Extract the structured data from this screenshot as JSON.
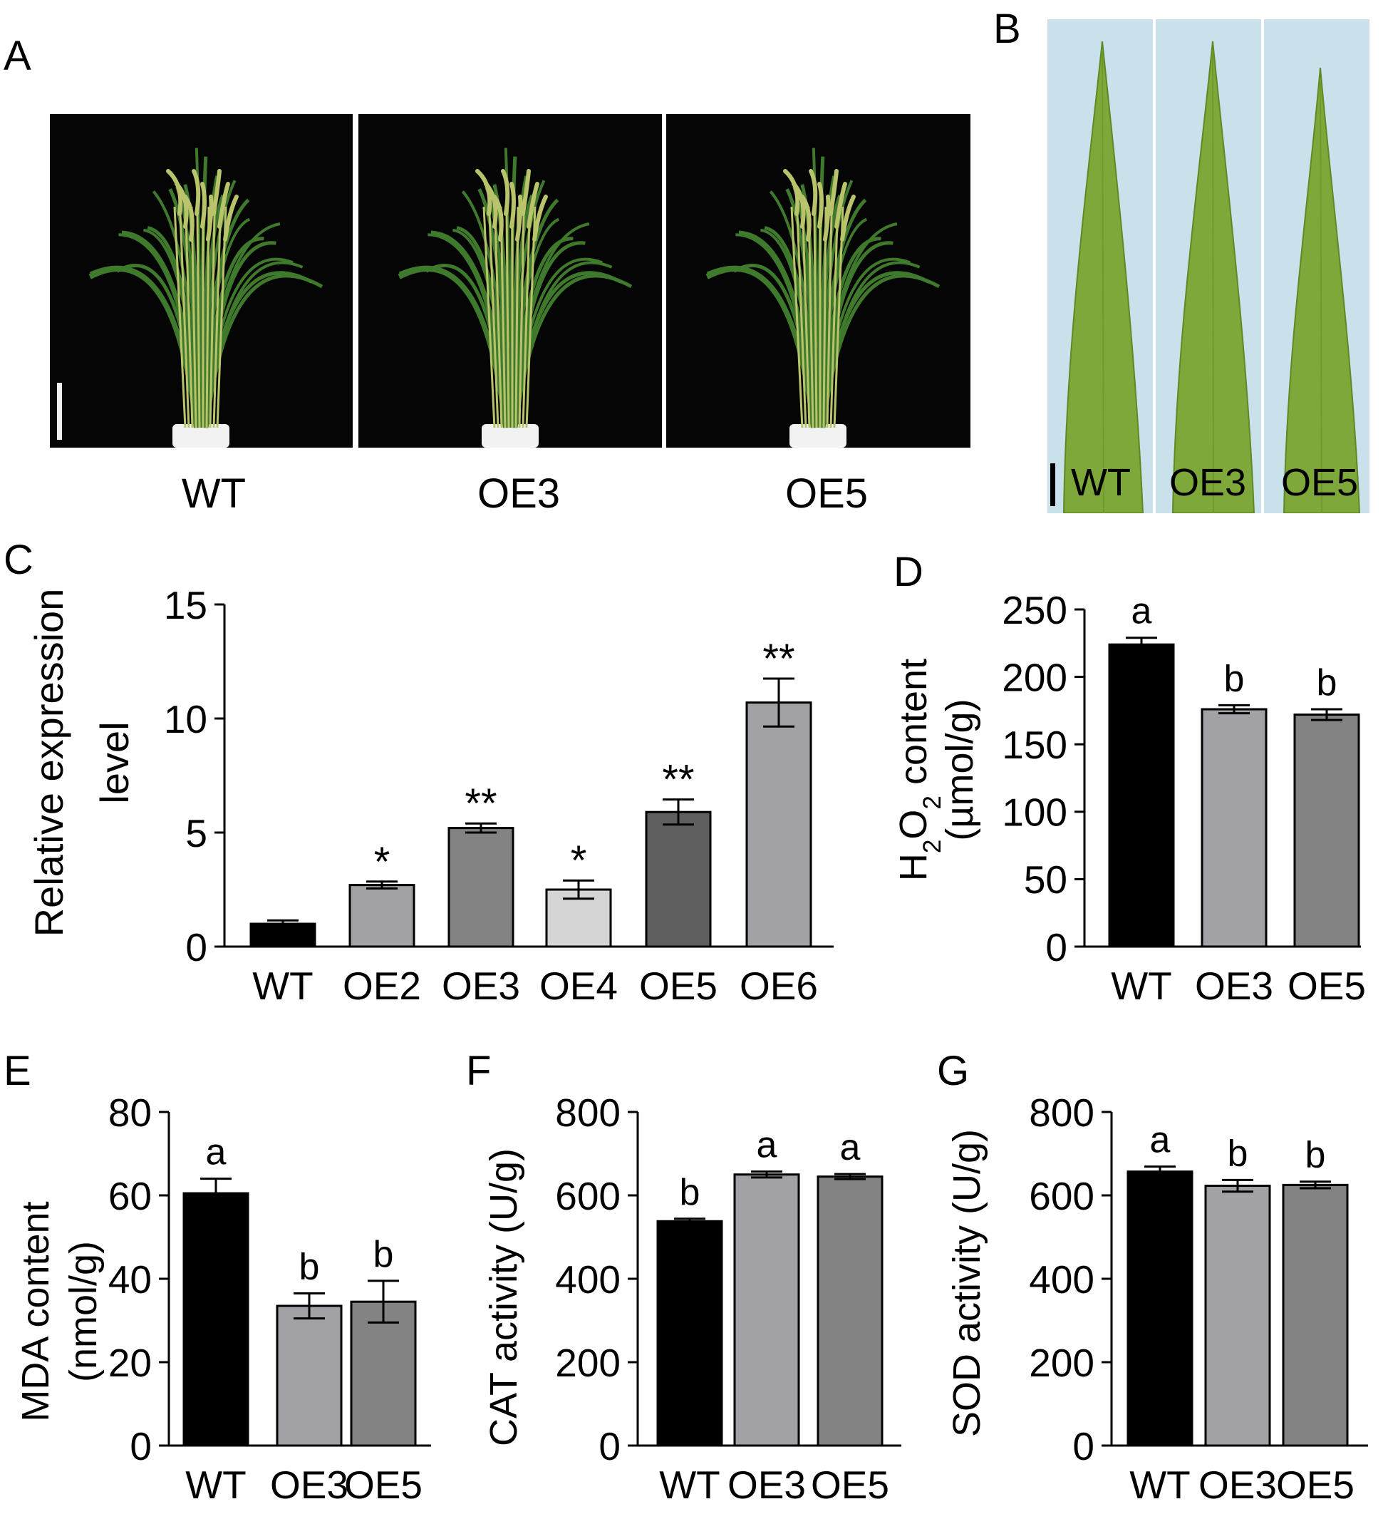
{
  "panels": {
    "A": {
      "letter": "A",
      "labels": [
        "WT",
        "OE3",
        "OE5"
      ]
    },
    "B": {
      "letter": "B",
      "labels": [
        "WT",
        "OE3",
        "OE5"
      ]
    }
  },
  "colors": {
    "photo_bg_A": "#050505",
    "plant_leaf": "#3f7a2c",
    "plant_panicle": "#b9c36a",
    "pot": "#f2f2f2",
    "photo_bg_B": "#c9e1ea",
    "leaf_fill": "#7fa83a",
    "leaf_edge": "#5d8a24",
    "black": "#000000",
    "gray_light": "#a1a1a6",
    "gray_mid": "#838384",
    "gray_very_light": "#d4d5d4",
    "gray_dark": "#5f5f5f"
  },
  "chart_data": [
    {
      "panel": "C",
      "type": "bar",
      "ylabel": [
        "Relative expression",
        "level"
      ],
      "ylim": [
        0,
        15
      ],
      "yticks": [
        0,
        5,
        10,
        15
      ],
      "categories": [
        "WT",
        "OE2",
        "OE3",
        "OE4",
        "OE5",
        "OE6"
      ],
      "values": [
        1.0,
        2.7,
        5.2,
        2.5,
        5.9,
        10.7
      ],
      "errors": [
        0.15,
        0.15,
        0.2,
        0.4,
        0.55,
        1.05
      ],
      "annotations": [
        "",
        "*",
        "**",
        "*",
        "**",
        "**"
      ],
      "colors": [
        "#000000",
        "#a1a1a6",
        "#838384",
        "#d4d5d4",
        "#5f5f5f",
        "#a1a1a6"
      ]
    },
    {
      "panel": "D",
      "type": "bar",
      "ylabel": [
        "H2O2 content",
        "(µmol/g)"
      ],
      "ylim": [
        0,
        250
      ],
      "yticks": [
        0,
        50,
        100,
        150,
        200,
        250
      ],
      "categories": [
        "WT",
        "OE3",
        "OE5"
      ],
      "values": [
        224,
        176,
        172
      ],
      "errors": [
        5,
        3,
        4
      ],
      "annotations": [
        "a",
        "b",
        "b"
      ],
      "colors": [
        "#000000",
        "#a1a1a6",
        "#838384"
      ]
    },
    {
      "panel": "E",
      "type": "bar",
      "ylabel": [
        "MDA content",
        "(nmol/g)"
      ],
      "ylim": [
        0,
        80
      ],
      "yticks": [
        0,
        20,
        40,
        60,
        80
      ],
      "categories": [
        "WT",
        "OE3",
        "OE5"
      ],
      "values": [
        60.5,
        33.5,
        34.5
      ],
      "errors": [
        3.5,
        3.0,
        5.0
      ],
      "annotations": [
        "a",
        "b",
        "b"
      ],
      "colors": [
        "#000000",
        "#a1a1a6",
        "#838384"
      ]
    },
    {
      "panel": "F",
      "type": "bar",
      "ylabel": [
        "CAT activity (U/g)"
      ],
      "ylim": [
        0,
        800
      ],
      "yticks": [
        0,
        200,
        400,
        600,
        800
      ],
      "categories": [
        "WT",
        "OE3",
        "OE5"
      ],
      "values": [
        538,
        650,
        645
      ],
      "errors": [
        6,
        7,
        6
      ],
      "annotations": [
        "b",
        "a",
        "a"
      ],
      "colors": [
        "#000000",
        "#a1a1a6",
        "#838384"
      ]
    },
    {
      "panel": "G",
      "type": "bar",
      "ylabel": [
        "SOD activity (U/g)"
      ],
      "ylim": [
        0,
        800
      ],
      "yticks": [
        0,
        200,
        400,
        600,
        800
      ],
      "categories": [
        "WT",
        "OE3",
        "OE5"
      ],
      "values": [
        657,
        623,
        625
      ],
      "errors": [
        12,
        14,
        8
      ],
      "annotations": [
        "a",
        "b",
        "b"
      ],
      "colors": [
        "#000000",
        "#a1a1a6",
        "#838384"
      ]
    }
  ]
}
